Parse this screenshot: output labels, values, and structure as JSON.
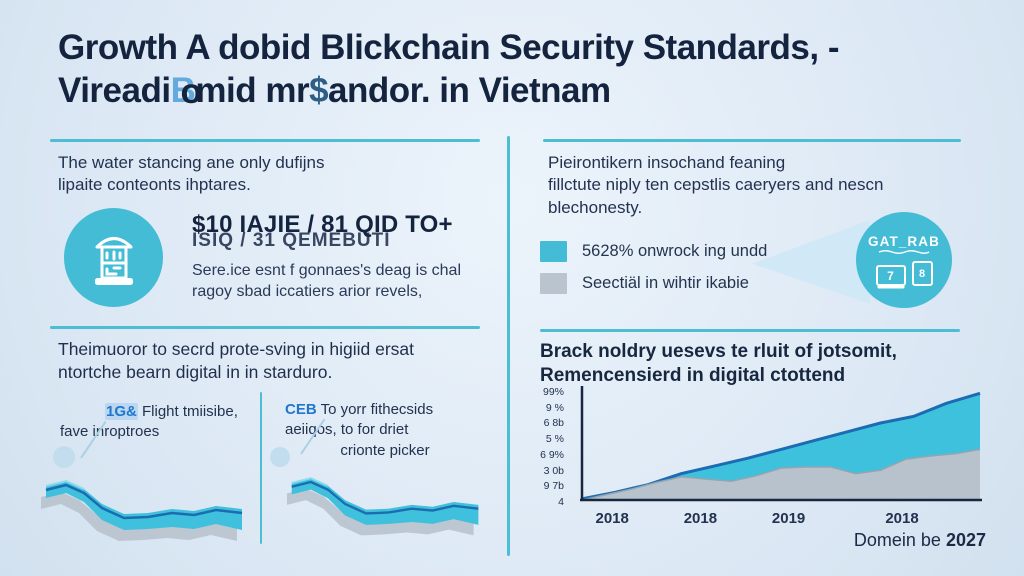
{
  "colors": {
    "background": "#dfeaf6",
    "navy_text": "#1b2a47",
    "teal_accent": "#44bcd5",
    "divider_teal": "#4cbdd2",
    "chart_teal_fill": "#3ec1dd",
    "chart_blue_stroke": "#1b6cb2",
    "chart_gray_fill": "#b7c2cc",
    "legend_gray": "#b9c4ce",
    "badge_blue": "#2077cc",
    "beam_light_blue": "#cfe8f6"
  },
  "title": {
    "line1": "Growth A dobid Blickchain Security Standards, -",
    "line2_pre": "Vireadi",
    "line2_ghost_b": "B",
    "line2_over_o": "o",
    "line2_mid": "mid mr",
    "line2_dollar": "$",
    "line2_post": "andor. in Vietnam"
  },
  "left_top": {
    "intro_line1": "The water stancing ane only dufijns",
    "intro_line2": "lipaite conteonts ihptares.",
    "stat_main": "$10 IAJIE / 81 QID TO+",
    "stat_overlay": "ISIQ / 31 QEMEBUTI",
    "stat_desc_line1": "Sere.ice esnt f gonnaes's deag is chal",
    "stat_desc_line2": "ragoy sbad iccatiers arior revels,"
  },
  "left_bottom": {
    "heading_line1": "Theimuoror to secrd prote-sving in higiid ersat",
    "heading_line2": "ntortche bearn digital in in starduro.",
    "panel1": {
      "badge": "1G&",
      "line1_rest": " Flight tmiisibe,",
      "line2": "fave inroptroes"
    },
    "panel2": {
      "badge": "CEB",
      "line1_rest": " To yorr fithecsids",
      "line2": "aeiiqos, to for driet",
      "line3": "crionte picker"
    }
  },
  "right_top": {
    "intro_line1": "Pieirontikern insochand feaning",
    "intro_line2": "fillctute niply ten cepstlis caeryers and nescn",
    "intro_line3": "blechonesty.",
    "legend": [
      {
        "label": "5628% onwrock ing undd",
        "color": "#44bcd5"
      },
      {
        "label": "Seectiäl in wihtir ikabie",
        "color": "#b9c4ce"
      }
    ],
    "gatrab": {
      "title": "GAT_RAB",
      "device_glyphs": [
        "7",
        "8"
      ]
    }
  },
  "right_bottom": {
    "chart_title_line1": "Brack noldry uesevs te rluit of jotsomit,",
    "chart_title_line2": "Remencensierd in digital ctottend",
    "footer_pre": "Domein be ",
    "footer_year": "2027"
  },
  "chart_data": {
    "type": "area",
    "title": "Brack noldry uesevs te rluit of jotsomit, Remencensierd in digital ctottend",
    "y_tick_labels": [
      "99%",
      "9 %",
      "6 8b",
      "5 %",
      "6 9%",
      "3 0b",
      "9 7b",
      "4"
    ],
    "x_tick_labels": [
      "2018",
      "2018",
      "2019",
      "2018"
    ],
    "grid": false,
    "legend_position": "upper-left-panel",
    "ylim_percent": [
      0,
      100
    ],
    "series": [
      {
        "name": "5628% onwrock ing undd",
        "color": "#3ec1dd",
        "stroke": "#1b6cb2",
        "values_pct": [
          1,
          7,
          14,
          24,
          31,
          38,
          46,
          54,
          62,
          70,
          76,
          88,
          97
        ]
      },
      {
        "name": "Seectiäl in wihtir ikabie",
        "color": "#b7c2cc",
        "stroke": "#94a5b2",
        "values_pct": [
          0,
          5,
          10,
          16,
          21,
          19,
          17,
          22,
          29,
          30,
          30,
          24,
          27,
          37,
          40,
          42,
          46
        ]
      }
    ]
  }
}
